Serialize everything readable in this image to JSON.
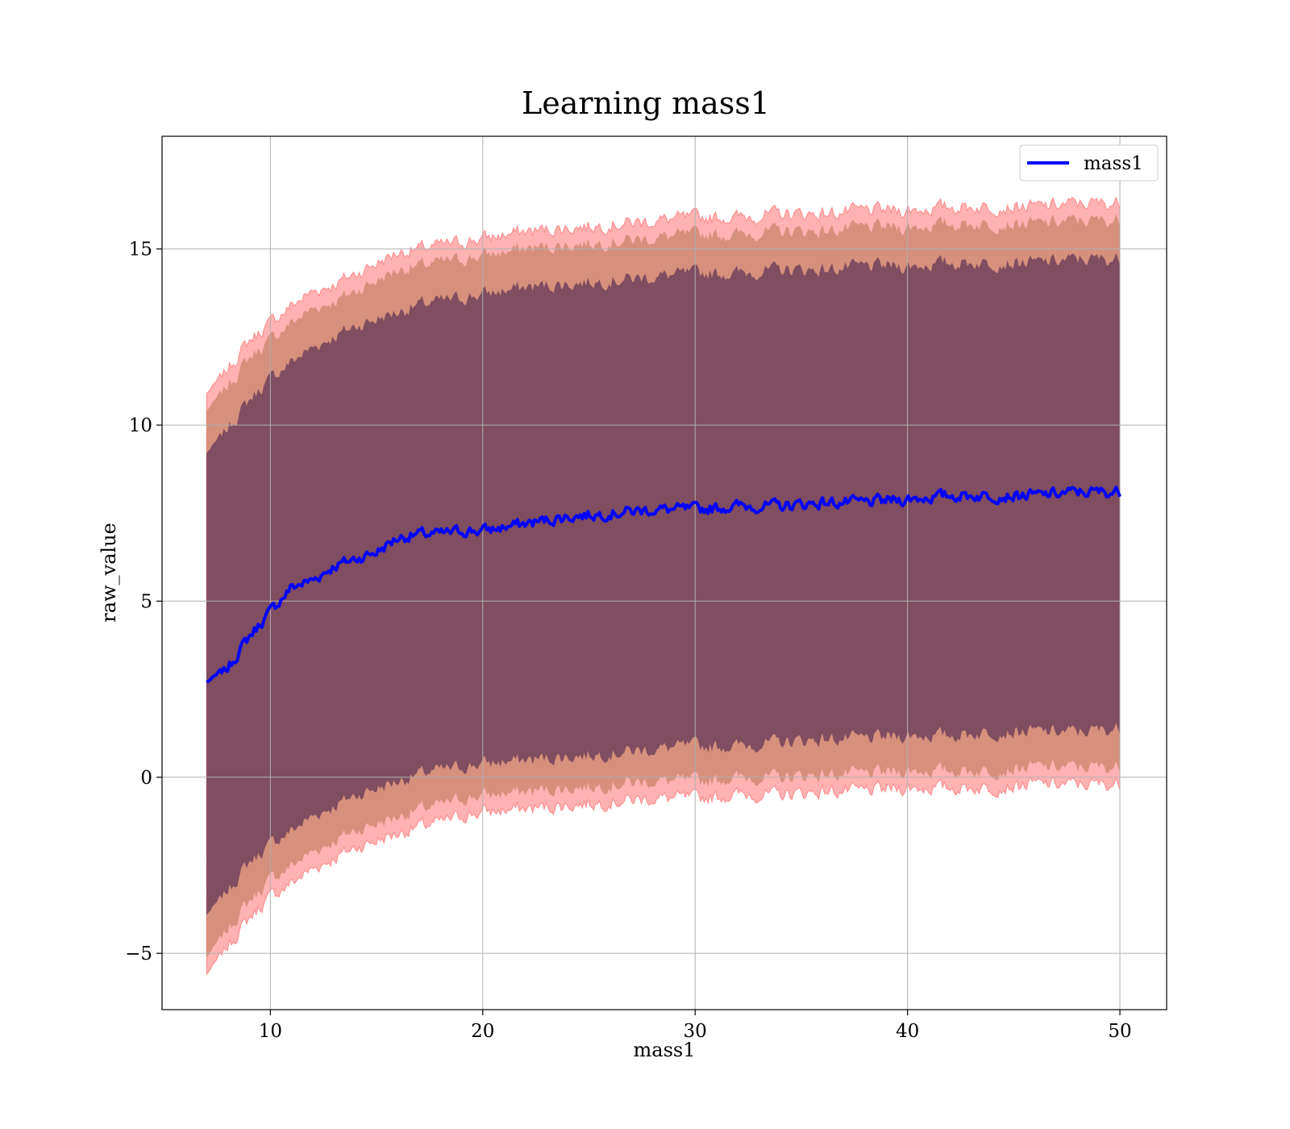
{
  "chart_data": {
    "type": "area",
    "title": "Learning mass1",
    "xlabel": "mass1",
    "ylabel": "raw_value",
    "xlim": [
      4.9,
      52.2
    ],
    "ylim": [
      -6.6,
      18.2
    ],
    "xticks": [
      10,
      20,
      30,
      40,
      50
    ],
    "yticks": [
      -5,
      0,
      5,
      10,
      15
    ],
    "xtick_labels": [
      "10",
      "20",
      "30",
      "40",
      "50"
    ],
    "ytick_labels": [
      "−5",
      "0",
      "5",
      "10",
      "15"
    ],
    "grid": true,
    "legend": {
      "placement": "top-right",
      "entries": [
        {
          "name": "mass1",
          "color": "#0000ff"
        }
      ]
    },
    "colors": {
      "line": "#0000ff",
      "band_outer": "#ff0000",
      "band_mid": "#c8866a",
      "band_inner": "#6a3c5a"
    },
    "noise": {
      "line": 0.28,
      "band": 0.35
    },
    "x": [
      7.0,
      8.0,
      9.0,
      10.0,
      11.0,
      12.0,
      13.0,
      14.0,
      15.0,
      16.0,
      17.0,
      18.0,
      19.0,
      20.0,
      22.0,
      24.0,
      26.0,
      28.0,
      30.0,
      32.0,
      34.0,
      36.0,
      38.0,
      40.0,
      42.0,
      44.0,
      46.0,
      48.0,
      50.0
    ],
    "series": [
      {
        "name": "mass1",
        "role": "line",
        "values": [
          2.7,
          3.1,
          4.0,
          4.7,
          5.4,
          5.6,
          6.0,
          6.2,
          6.4,
          6.8,
          6.9,
          6.9,
          7.0,
          7.0,
          7.2,
          7.4,
          7.5,
          7.6,
          7.6,
          7.7,
          7.7,
          7.8,
          7.8,
          7.9,
          8.0,
          8.0,
          8.0,
          8.1,
          8.1
        ]
      },
      {
        "role": "band-outer",
        "lower": [
          -5.6,
          -4.8,
          -4.0,
          -3.4,
          -3.0,
          -2.6,
          -2.3,
          -2.0,
          -1.8,
          -1.6,
          -1.4,
          -1.3,
          -1.1,
          -1.0,
          -0.9,
          -0.8,
          -0.7,
          -0.6,
          -0.6,
          -0.5,
          -0.5,
          -0.4,
          -0.4,
          -0.3,
          -0.3,
          -0.3,
          -0.2,
          -0.2,
          -0.2
        ],
        "upper": [
          10.9,
          11.6,
          12.4,
          12.9,
          13.4,
          13.8,
          14.0,
          14.3,
          14.6,
          14.9,
          15.0,
          15.1,
          15.2,
          15.3,
          15.5,
          15.6,
          15.7,
          15.8,
          15.9,
          15.9,
          16.0,
          16.0,
          16.1,
          16.1,
          16.2,
          16.2,
          16.2,
          16.3,
          16.3
        ]
      },
      {
        "role": "band-mid",
        "lower": [
          -5.1,
          -4.3,
          -3.5,
          -2.9,
          -2.5,
          -2.1,
          -1.8,
          -1.5,
          -1.3,
          -1.1,
          -0.9,
          -0.8,
          -0.6,
          -0.5,
          -0.4,
          -0.3,
          -0.2,
          -0.1,
          -0.1,
          0.0,
          0.0,
          0.1,
          0.1,
          0.2,
          0.2,
          0.2,
          0.3,
          0.3,
          0.3
        ],
        "upper": [
          10.4,
          11.1,
          11.9,
          12.4,
          12.9,
          13.3,
          13.5,
          13.8,
          14.1,
          14.4,
          14.5,
          14.6,
          14.7,
          14.8,
          15.0,
          15.1,
          15.2,
          15.3,
          15.4,
          15.4,
          15.5,
          15.5,
          15.6,
          15.6,
          15.7,
          15.7,
          15.7,
          15.8,
          15.8
        ]
      },
      {
        "role": "band-inner",
        "lower": [
          -3.9,
          -3.2,
          -2.4,
          -1.9,
          -1.5,
          -1.1,
          -0.8,
          -0.5,
          -0.3,
          -0.1,
          0.1,
          0.2,
          0.3,
          0.4,
          0.5,
          0.6,
          0.7,
          0.8,
          0.9,
          0.9,
          1.0,
          1.1,
          1.1,
          1.2,
          1.2,
          1.3,
          1.3,
          1.3,
          1.4
        ],
        "upper": [
          9.2,
          9.9,
          10.7,
          11.3,
          11.8,
          12.2,
          12.5,
          12.8,
          13.0,
          13.2,
          13.4,
          13.5,
          13.6,
          13.7,
          13.9,
          14.0,
          14.1,
          14.2,
          14.3,
          14.3,
          14.4,
          14.4,
          14.5,
          14.5,
          14.6,
          14.6,
          14.6,
          14.7,
          14.7
        ]
      }
    ]
  }
}
